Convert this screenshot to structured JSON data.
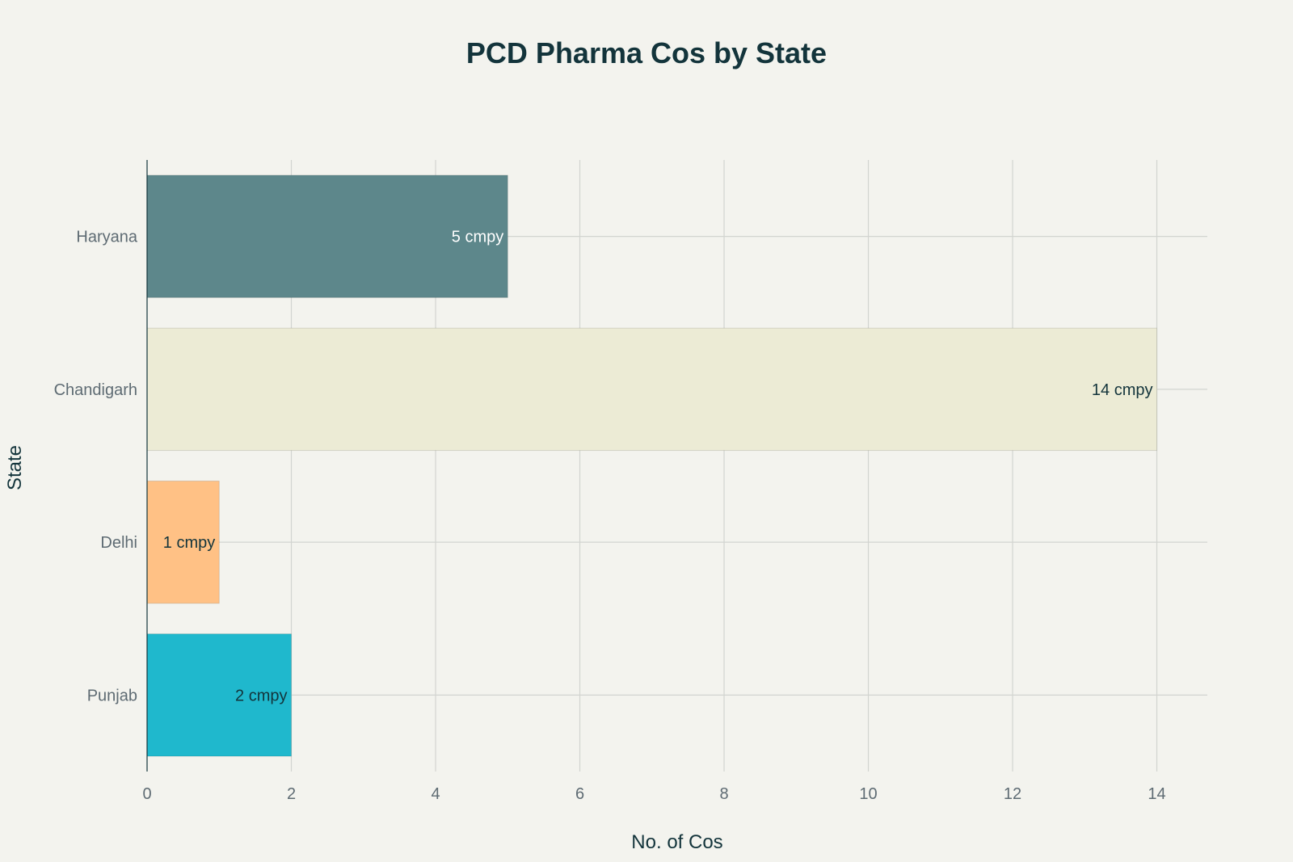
{
  "chart_data": {
    "type": "bar",
    "orientation": "horizontal",
    "title": "PCD Pharma Cos by State",
    "xlabel": "No. of Cos",
    "ylabel": "State",
    "categories": [
      "Haryana",
      "Chandigarh",
      "Delhi",
      "Punjab"
    ],
    "values": [
      5,
      14,
      1,
      2
    ],
    "data_labels": [
      "5 cmpy",
      "14 cmpy",
      "1 cmpy",
      "2 cmpy"
    ],
    "colors": [
      "#5d878b",
      "#ecebd5",
      "#ffc185",
      "#1fb8cd"
    ],
    "label_colors": [
      "#ffffff",
      "#13343b",
      "#13343b",
      "#13343b"
    ],
    "xlim": [
      0,
      14.7
    ],
    "xticks": [
      0,
      2,
      4,
      6,
      8,
      10,
      12,
      14
    ],
    "grid": true,
    "legend": "none"
  }
}
